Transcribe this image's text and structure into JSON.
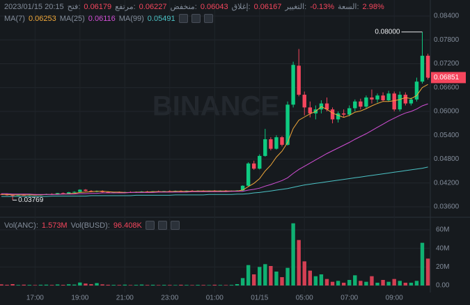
{
  "chart_data": {
    "type": "candlestick",
    "header": {
      "time": "2023/01/15 20:15",
      "fields": [
        {
          "label": "فتح:",
          "value": "0.06179"
        },
        {
          "label": "مرتفع:",
          "value": "0.06227"
        },
        {
          "label": "منخفض:",
          "value": "0.06043"
        },
        {
          "label": "إغلاق:",
          "value": "0.06167"
        },
        {
          "label": "التغيير:",
          "value": "-0.13%"
        },
        {
          "label": "السعة:",
          "value": "2.98%"
        }
      ]
    },
    "watermark": "BINANCE",
    "up_color": "#0ecb81",
    "down_color": "#f6465d",
    "grid": true,
    "categories": [
      null,
      null,
      null,
      null,
      null,
      null,
      "17:00",
      null,
      null,
      null,
      null,
      null,
      null,
      null,
      "19:00",
      null,
      null,
      null,
      null,
      null,
      null,
      null,
      "21:00",
      null,
      null,
      null,
      null,
      null,
      null,
      null,
      "23:00",
      null,
      null,
      null,
      null,
      null,
      null,
      null,
      "01:00",
      null,
      null,
      null,
      null,
      null,
      null,
      null,
      "01/15",
      null,
      null,
      null,
      null,
      null,
      null,
      null,
      "05:00",
      null,
      null,
      null,
      null,
      null,
      null,
      null,
      "07:00",
      null,
      null,
      null,
      null,
      null,
      null,
      null,
      "09:00",
      null,
      null,
      null,
      null,
      null,
      null
    ],
    "open": [
      0.0392,
      0.0391,
      0.03895,
      0.03885,
      0.039,
      0.0389,
      0.03905,
      0.03895,
      0.0391,
      0.0392,
      0.03915,
      0.03945,
      0.03935,
      0.03965,
      0.03975,
      0.0403,
      0.04,
      0.0398,
      0.04,
      0.0397,
      0.03955,
      0.03965,
      0.0396,
      0.0397,
      0.0396,
      0.03975,
      0.03985,
      0.0397,
      0.0399,
      0.0398,
      0.03995,
      0.03985,
      0.04,
      0.0399,
      0.04005,
      0.03995,
      0.04,
      0.0399,
      0.04005,
      0.03995,
      0.04005,
      0.03995,
      0.04,
      0.0401,
      0.0413,
      0.0469,
      0.0456,
      0.0488,
      0.053,
      0.0506,
      0.0535,
      0.0516,
      0.0617,
      0.0715,
      0.0642,
      0.061,
      0.0595,
      0.0605,
      0.062,
      0.0605,
      0.058,
      0.0595,
      0.0592,
      0.0608,
      0.0625,
      0.0612,
      0.0635,
      0.063,
      0.064,
      0.0628,
      0.0645,
      0.0605,
      0.0642,
      0.062,
      0.063,
      0.0675,
      0.074
    ],
    "high": [
      0.03935,
      0.03925,
      0.0391,
      0.03905,
      0.03915,
      0.0391,
      0.0392,
      0.03915,
      0.0393,
      0.0394,
      0.0395,
      0.0396,
      0.03975,
      0.0399,
      0.0404,
      0.04045,
      0.0402,
      0.0401,
      0.04015,
      0.0399,
      0.03975,
      0.03985,
      0.0398,
      0.0399,
      0.03985,
      0.03995,
      0.04,
      0.03995,
      0.0401,
      0.04,
      0.04015,
      0.0401,
      0.04015,
      0.0401,
      0.0402,
      0.04015,
      0.04015,
      0.0401,
      0.0402,
      0.04015,
      0.0402,
      0.0401,
      0.0402,
      0.0414,
      0.0472,
      0.0476,
      0.0492,
      0.0556,
      0.0535,
      0.054,
      0.0538,
      0.0625,
      0.0725,
      0.0757,
      0.065,
      0.0625,
      0.0615,
      0.0628,
      0.0635,
      0.061,
      0.06,
      0.0605,
      0.0615,
      0.063,
      0.0632,
      0.064,
      0.0655,
      0.0645,
      0.0648,
      0.0652,
      0.065,
      0.065,
      0.0648,
      0.0635,
      0.0685,
      0.08,
      0.0745
    ],
    "low": [
      0.039,
      0.0388,
      0.03769,
      0.03875,
      0.03885,
      0.0388,
      0.0389,
      0.03885,
      0.039,
      0.03905,
      0.0391,
      0.03925,
      0.0393,
      0.0395,
      0.0397,
      0.0399,
      0.0397,
      0.03965,
      0.0396,
      0.03945,
      0.0394,
      0.0395,
      0.03945,
      0.03955,
      0.0395,
      0.0396,
      0.03965,
      0.0396,
      0.03975,
      0.0397,
      0.0398,
      0.03975,
      0.0398,
      0.03975,
      0.03985,
      0.0398,
      0.03985,
      0.03975,
      0.0399,
      0.03985,
      0.0399,
      0.0398,
      0.03985,
      0.04,
      0.0412,
      0.0453,
      0.0454,
      0.0486,
      0.0502,
      0.0504,
      0.0512,
      0.0514,
      0.061,
      0.0638,
      0.059,
      0.0585,
      0.058,
      0.0595,
      0.06,
      0.057,
      0.0572,
      0.0585,
      0.0588,
      0.06,
      0.0605,
      0.0608,
      0.062,
      0.0622,
      0.0625,
      0.0625,
      0.06,
      0.06,
      0.0615,
      0.0615,
      0.0625,
      0.067,
      0.068
    ],
    "close": [
      0.0391,
      0.03895,
      0.03885,
      0.039,
      0.0389,
      0.03905,
      0.03895,
      0.0391,
      0.0392,
      0.03915,
      0.03945,
      0.03935,
      0.03965,
      0.03975,
      0.0403,
      0.04,
      0.0398,
      0.04,
      0.0397,
      0.03955,
      0.03965,
      0.0396,
      0.0397,
      0.0396,
      0.03975,
      0.03985,
      0.0397,
      0.0399,
      0.0398,
      0.03995,
      0.03985,
      0.04,
      0.0399,
      0.04005,
      0.03995,
      0.04,
      0.0399,
      0.04005,
      0.03995,
      0.04005,
      0.03995,
      0.04,
      0.0401,
      0.0413,
      0.0469,
      0.0456,
      0.0488,
      0.053,
      0.0506,
      0.0535,
      0.0516,
      0.0617,
      0.0717,
      0.0642,
      0.061,
      0.0595,
      0.0605,
      0.062,
      0.0605,
      0.058,
      0.0595,
      0.0592,
      0.0608,
      0.0625,
      0.0612,
      0.0635,
      0.063,
      0.064,
      0.0628,
      0.0645,
      0.0605,
      0.0642,
      0.062,
      0.063,
      0.0675,
      0.074,
      0.06851
    ],
    "ylim": [
      0.03372,
      0.08803
    ],
    "yticks": [
      {
        "value": 0.036,
        "label": "0.03600"
      },
      {
        "value": 0.042,
        "label": "0.04200"
      },
      {
        "value": 0.048,
        "label": "0.04800"
      },
      {
        "value": 0.054,
        "label": "0.05400"
      },
      {
        "value": 0.06,
        "label": "0.06000"
      },
      {
        "value": 0.066,
        "label": "0.06600"
      },
      {
        "value": 0.072,
        "label": "0.07200"
      },
      {
        "value": 0.078,
        "label": "0.07800"
      },
      {
        "value": 0.084,
        "label": "0.08400"
      }
    ],
    "annotations": {
      "max": "0.08000",
      "min": "0.03769",
      "last": "0.06851"
    },
    "series": [
      {
        "name": "MA(7)",
        "legend_value": "0.06253",
        "color": "#f0a83a",
        "values": [
          0.0391,
          0.0391,
          0.039,
          0.039,
          0.039,
          0.039,
          0.039,
          0.039,
          0.0391,
          0.0391,
          0.0392,
          0.0392,
          0.0393,
          0.0394,
          0.0396,
          0.0397,
          0.0398,
          0.0399,
          0.0399,
          0.0398,
          0.0397,
          0.0397,
          0.0396,
          0.0396,
          0.0397,
          0.0397,
          0.0397,
          0.0398,
          0.0398,
          0.0398,
          0.0398,
          0.0399,
          0.0399,
          0.0399,
          0.0399,
          0.04,
          0.04,
          0.04,
          0.04,
          0.04,
          0.04,
          0.04,
          0.04,
          0.0402,
          0.0411,
          0.0419,
          0.0431,
          0.045,
          0.0465,
          0.0485,
          0.05,
          0.0522,
          0.0557,
          0.0578,
          0.0586,
          0.0594,
          0.06,
          0.0612,
          0.0605,
          0.0596,
          0.059,
          0.0585,
          0.059,
          0.0598,
          0.0601,
          0.0607,
          0.0614,
          0.062,
          0.0625,
          0.0625,
          0.0627,
          0.063,
          0.0635,
          0.0632,
          0.064,
          0.066,
          0.0668
        ]
      },
      {
        "name": "MA(25)",
        "legend_value": "0.06116",
        "color": "#d24fd6",
        "values": [
          0.0393,
          0.0393,
          0.0392,
          0.0392,
          0.0392,
          0.0392,
          0.0391,
          0.0391,
          0.0391,
          0.0391,
          0.0391,
          0.0392,
          0.0392,
          0.0392,
          0.0393,
          0.0393,
          0.0394,
          0.0394,
          0.0395,
          0.0395,
          0.0395,
          0.0395,
          0.0395,
          0.0396,
          0.0396,
          0.0396,
          0.0396,
          0.0396,
          0.0397,
          0.0397,
          0.0397,
          0.0397,
          0.0397,
          0.0397,
          0.0398,
          0.0398,
          0.0398,
          0.0398,
          0.0398,
          0.0398,
          0.0398,
          0.0399,
          0.0399,
          0.0399,
          0.0402,
          0.0404,
          0.0407,
          0.0412,
          0.0416,
          0.0421,
          0.0426,
          0.0433,
          0.0444,
          0.0454,
          0.0462,
          0.047,
          0.0478,
          0.0486,
          0.0494,
          0.0501,
          0.0508,
          0.0515,
          0.0522,
          0.053,
          0.0537,
          0.0544,
          0.0552,
          0.056,
          0.0568,
          0.0576,
          0.0583,
          0.059,
          0.0596,
          0.06,
          0.0606,
          0.0614,
          0.0619
        ]
      },
      {
        "name": "MA(99)",
        "legend_value": "0.05491",
        "color": "#4cc3c6",
        "values": [
          0.0386,
          0.0386,
          0.0386,
          0.0386,
          0.0386,
          0.0386,
          0.0386,
          0.0386,
          0.0386,
          0.0387,
          0.0387,
          0.0387,
          0.0387,
          0.0387,
          0.0387,
          0.0387,
          0.0388,
          0.0388,
          0.0388,
          0.0388,
          0.0388,
          0.0388,
          0.0388,
          0.0388,
          0.0389,
          0.0389,
          0.0389,
          0.0389,
          0.0389,
          0.0389,
          0.0389,
          0.039,
          0.039,
          0.039,
          0.039,
          0.039,
          0.039,
          0.0391,
          0.0391,
          0.0391,
          0.0391,
          0.0391,
          0.0392,
          0.0392,
          0.0393,
          0.0395,
          0.0396,
          0.0398,
          0.04,
          0.0402,
          0.0404,
          0.0406,
          0.0409,
          0.0412,
          0.0415,
          0.0417,
          0.0419,
          0.0421,
          0.0423,
          0.0425,
          0.0427,
          0.0429,
          0.0431,
          0.0433,
          0.0435,
          0.0437,
          0.0439,
          0.0441,
          0.0443,
          0.0445,
          0.0447,
          0.0449,
          0.0451,
          0.0453,
          0.0455,
          0.0457,
          0.046
        ]
      }
    ],
    "volume": {
      "legend": [
        {
          "name": "Vol(ANC):",
          "value": "1.573M"
        },
        {
          "name": "Vol(BUSD):",
          "value": "96.408K"
        }
      ],
      "values": [
        1.2,
        0.8,
        1.5,
        0.6,
        0.9,
        0.7,
        0.5,
        0.8,
        0.9,
        0.6,
        1.1,
        0.7,
        1.3,
        1.0,
        3.2,
        2.1,
        1.4,
        2.6,
        1.2,
        0.8,
        0.7,
        0.6,
        0.9,
        0.5,
        0.7,
        1.0,
        0.6,
        0.8,
        0.5,
        0.7,
        0.6,
        0.5,
        0.8,
        0.6,
        0.5,
        0.7,
        0.6,
        0.5,
        0.8,
        0.6,
        0.5,
        0.7,
        1.5,
        8,
        22,
        12,
        20,
        23,
        21,
        15,
        9,
        19,
        67,
        49,
        26,
        16,
        10,
        12,
        7,
        4,
        5,
        3,
        6,
        11,
        5,
        4,
        10,
        3,
        6,
        4,
        7,
        5,
        3,
        3,
        5,
        46,
        29
      ],
      "ylim": [
        -7.5,
        72
      ],
      "yticks": [
        {
          "value": 0,
          "label": "0.00"
        },
        {
          "value": 20,
          "label": "20M"
        },
        {
          "value": 40,
          "label": "40M"
        },
        {
          "value": 60,
          "label": "60M"
        }
      ]
    }
  }
}
